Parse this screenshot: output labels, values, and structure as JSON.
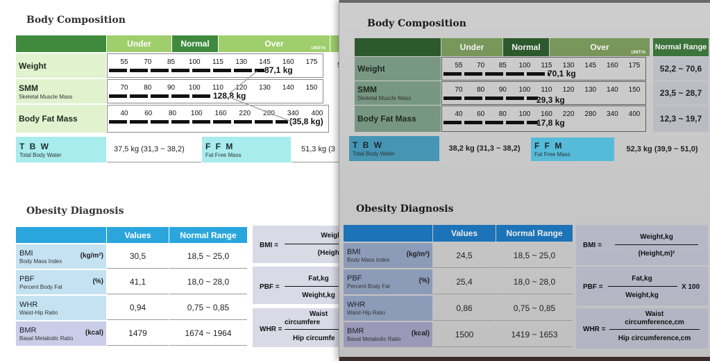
{
  "left": {
    "body_composition": {
      "title": "Body Composition",
      "headers": {
        "under": "Under",
        "normal": "Normal",
        "over": "Over",
        "unit": "UNIT:%"
      },
      "rows": [
        {
          "label": "Weight",
          "sub": "",
          "ticks": [
            "55",
            "70",
            "85",
            "100",
            "115",
            "130",
            "145",
            "160",
            "175"
          ],
          "value": "87,1 kg"
        },
        {
          "label": "SMM",
          "sub": "Skeletal Muscle Mass",
          "ticks": [
            "70",
            "80",
            "90",
            "100",
            "110",
            "120",
            "130",
            "140",
            "150"
          ],
          "value": "128,8 kg"
        },
        {
          "label": "Body Fat Mass",
          "sub": "",
          "ticks": [
            "40",
            "60",
            "80",
            "100",
            "160",
            "220",
            "280",
            "340",
            "400"
          ],
          "value": "(35,8 kg)"
        }
      ],
      "tbw": {
        "label": "T B W",
        "sub": "Total Body Water",
        "value": "37,5 kg (31,3 ~ 38,2)"
      },
      "ffm": {
        "label": "F F M",
        "sub": "Fat Free Mass",
        "value": "51,3 kg (3"
      },
      "extra_digit": "5"
    },
    "obesity": {
      "title": "Obesity Diagnosis",
      "headers": {
        "values": "Values",
        "normal_range": "Normal Range"
      },
      "rows": [
        {
          "label": "BMI",
          "sub": "Body Mass Index",
          "unit": "(kg/m²)",
          "value": "30,5",
          "range": "18,5 ~ 25,0"
        },
        {
          "label": "PBF",
          "sub": "Percent Body Fat",
          "unit": "(%)",
          "value": "41,1",
          "range": "18,0 ~ 28,0"
        },
        {
          "label": "WHR",
          "sub": "Waist-Hip Ratio",
          "unit": "",
          "value": "0,94",
          "range": "0,75 ~ 0,85"
        },
        {
          "label": "BMR",
          "sub": "Basal Metabolic Ratio",
          "unit": "(kcal)",
          "value": "1479",
          "range": "1674 ~ 1964"
        }
      ],
      "formulas": [
        {
          "lhs": "BMI =",
          "num": "Weight",
          "den": "(Height"
        },
        {
          "lhs": "PBF =",
          "num": "Fat,kg",
          "den": "Weight,kg"
        },
        {
          "lhs": "WHR =",
          "num": "circumfere",
          "den": "Hip circumfe",
          "num_top": "Waist"
        }
      ]
    }
  },
  "right": {
    "body_composition": {
      "title": "Body Composition",
      "headers": {
        "under": "Under",
        "normal": "Normal",
        "over": "Over",
        "unit": "UNIT:%",
        "normal_range": "Normal Range"
      },
      "rows": [
        {
          "label": "Weight",
          "sub": "",
          "ticks": [
            "55",
            "70",
            "85",
            "100",
            "115",
            "130",
            "145",
            "160",
            "175"
          ],
          "value": "70,1 kg",
          "range": "52,2 ~ 70,6"
        },
        {
          "label": "SMM",
          "sub": "Skeletal Muscle Mass",
          "ticks": [
            "70",
            "80",
            "90",
            "100",
            "110",
            "120",
            "130",
            "140",
            "150"
          ],
          "value": "29,3 kg",
          "range": "23,5 ~ 28,7"
        },
        {
          "label": "Body Fat Mass",
          "sub": "",
          "ticks": [
            "40",
            "60",
            "80",
            "100",
            "160",
            "220",
            "280",
            "340",
            "400"
          ],
          "value": "17,8 kg",
          "range": "12,3 ~ 19,7"
        }
      ],
      "tbw": {
        "label": "T B W",
        "sub": "Total Body Water",
        "value": "38,2 kg (31,3 ~ 38,2)"
      },
      "ffm": {
        "label": "F F M",
        "sub": "Fat Free Mass",
        "value": "52,3 kg (39,9 ~ 51,0)"
      }
    },
    "obesity": {
      "title": "Obesity Diagnosis",
      "headers": {
        "values": "Values",
        "normal_range": "Normal Range"
      },
      "rows": [
        {
          "label": "BMI",
          "sub": "Body Mass Index",
          "unit": "(kg/m²)",
          "value": "24,5",
          "range": "18,5 ~ 25,0"
        },
        {
          "label": "PBF",
          "sub": "Percent Body Fat",
          "unit": "(%)",
          "value": "25,4",
          "range": "18,0 ~ 28,0"
        },
        {
          "label": "WHR",
          "sub": "Waist-Hip Ratio",
          "unit": "",
          "value": "0,86",
          "range": "0,75 ~ 0,85"
        },
        {
          "label": "BMR",
          "sub": "Basal Metabolic Ratio",
          "unit": "(kcal)",
          "value": "1500",
          "range": "1419 ~ 1653"
        }
      ],
      "formulas": [
        {
          "lhs": "BMI =",
          "num": "Weight,kg",
          "den": "(Height,m)²",
          "x100": ""
        },
        {
          "lhs": "PBF =",
          "num": "Fat,kg",
          "den": "Weight,kg",
          "x100": "X 100"
        },
        {
          "lhs": "WHR =",
          "num": "circumference,cm",
          "den": "Hip circumference,cm",
          "num_top": "Waist",
          "x100": ""
        }
      ]
    }
  }
}
